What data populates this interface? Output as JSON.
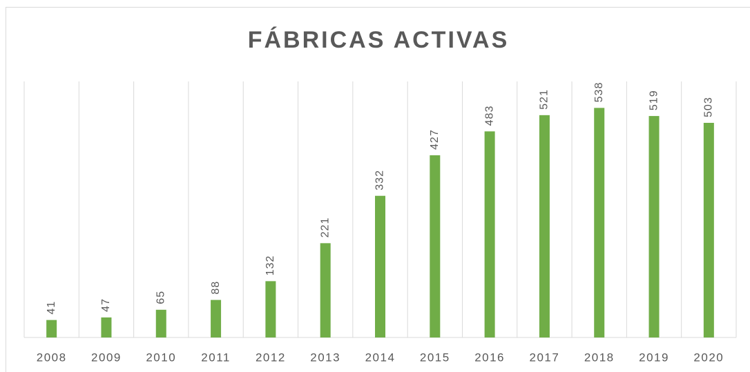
{
  "chart_data": {
    "type": "bar",
    "title": "FÁBRICAS ACTIVAS",
    "categories": [
      "2008",
      "2009",
      "2010",
      "2011",
      "2012",
      "2013",
      "2014",
      "2015",
      "2016",
      "2017",
      "2018",
      "2019",
      "2020"
    ],
    "values": [
      41,
      47,
      65,
      88,
      132,
      221,
      332,
      427,
      483,
      521,
      538,
      519,
      503
    ],
    "color": "#70ad47",
    "ylim": [
      0,
      600
    ]
  }
}
